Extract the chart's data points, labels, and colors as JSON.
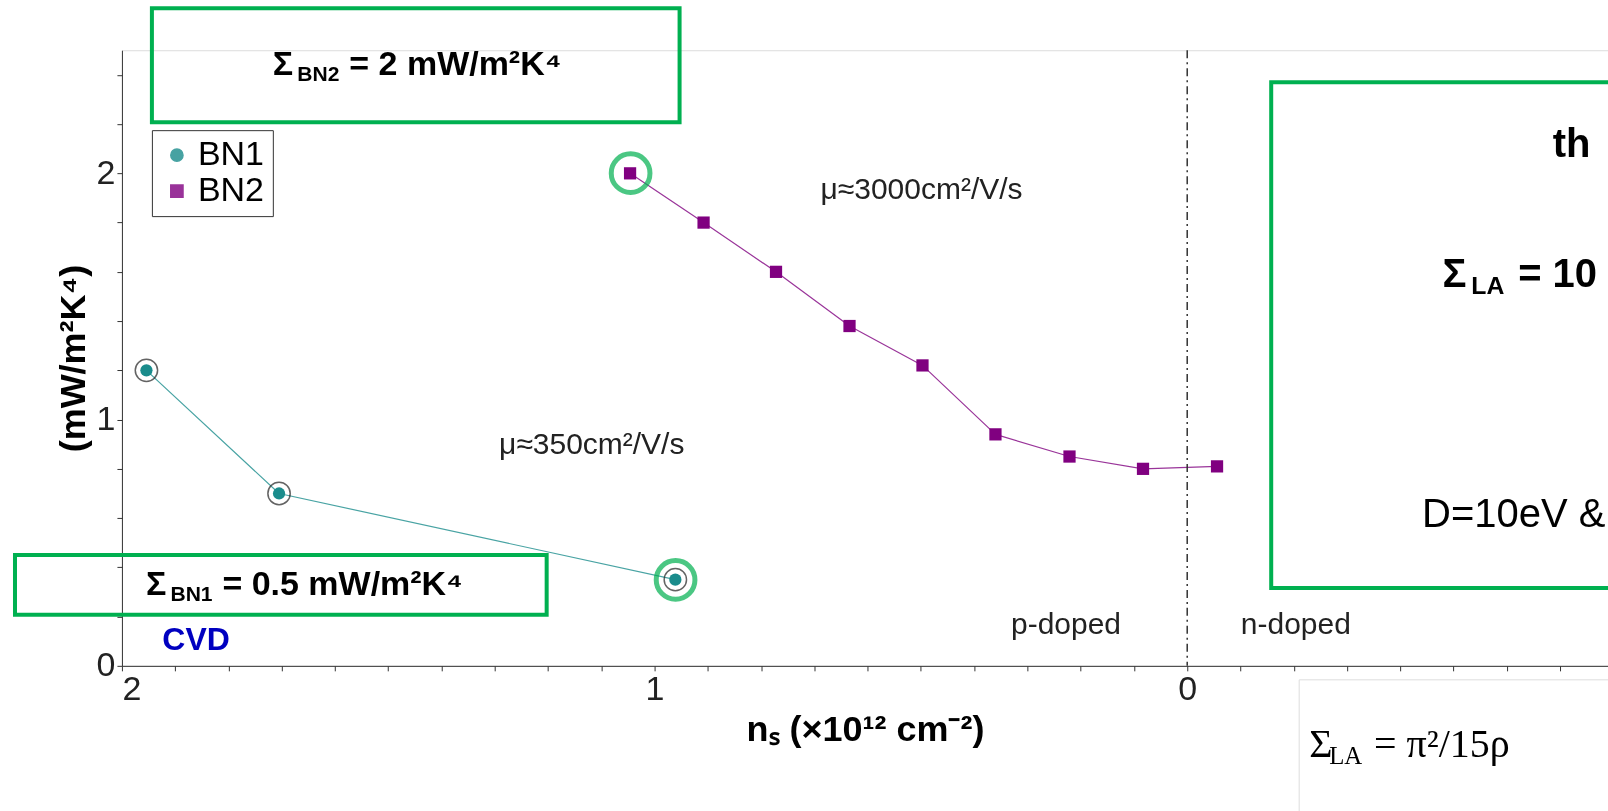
{
  "chart_data": {
    "type": "line",
    "xlabel": "nₛ (×10¹² cm⁻²)",
    "ylabel": "(mW/m²K⁴)",
    "xlim": [
      2,
      -0.79
    ],
    "ylim": [
      0,
      2.5
    ],
    "xticks": [
      2,
      {
        "value": 1.9,
        "label": null
      },
      {
        "value": 1.8,
        "label": null
      },
      {
        "value": 1.7,
        "label": null
      },
      {
        "value": 1.6,
        "label": null
      },
      {
        "value": 1.5,
        "label": null
      },
      {
        "value": 1.4,
        "label": null
      },
      {
        "value": 1.3,
        "label": null
      },
      {
        "value": 1.2,
        "label": null
      },
      {
        "value": 1.1,
        "label": null
      },
      1,
      {
        "value": 0.9,
        "label": null
      },
      {
        "value": 0.8,
        "label": null
      },
      {
        "value": 0.7,
        "label": null
      },
      {
        "value": 0.6,
        "label": null
      },
      {
        "value": 0.5,
        "label": null
      },
      {
        "value": 0.4,
        "label": null
      },
      {
        "value": 0.3,
        "label": null
      },
      {
        "value": 0.2,
        "label": null
      },
      {
        "value": 0.1,
        "label": null
      },
      0,
      {
        "value": -0.1,
        "label": null
      },
      {
        "value": -0.2,
        "label": null
      },
      {
        "value": -0.3,
        "label": null
      },
      {
        "value": -0.4,
        "label": null
      },
      {
        "value": -0.5,
        "label": null
      },
      {
        "value": -0.6,
        "label": null
      },
      {
        "value": -0.7,
        "label": null
      }
    ],
    "yticks": [
      0,
      {
        "value": 0.2,
        "label": null
      },
      {
        "value": 0.4,
        "label": null
      },
      {
        "value": 0.6,
        "label": null
      },
      {
        "value": 0.8,
        "label": null
      },
      1,
      {
        "value": 1.2,
        "label": null
      },
      {
        "value": 1.4,
        "label": null
      },
      {
        "value": 1.6,
        "label": null
      },
      {
        "value": 1.8,
        "label": null
      },
      2,
      {
        "value": 2.2,
        "label": null
      },
      {
        "value": 2.4,
        "label": null
      }
    ],
    "series": [
      {
        "name": "BN1",
        "color": "#1a8c8c",
        "marker": "circle",
        "x": [
          1.954,
          1.705,
          0.961
        ],
        "values": [
          1.2,
          0.7,
          0.35
        ]
      },
      {
        "name": "BN2",
        "color": "#800080",
        "marker": "square",
        "x": [
          1.046,
          0.908,
          0.772,
          0.634,
          0.497,
          0.36,
          0.221,
          0.083,
          -0.056
        ],
        "values": [
          2.0,
          1.8,
          1.6,
          1.38,
          1.22,
          0.94,
          0.85,
          0.8,
          0.81
        ]
      }
    ],
    "ref_lines": [
      {
        "axis": "x",
        "value": 0,
        "color": "#333333",
        "line_style": "dashed"
      }
    ],
    "annotations": [
      "μ≈3000cm²/V/s",
      "μ≈350cm²/V/s",
      "p-doped",
      "n-doped",
      "CVD",
      "Σ$_{BN2}$ = 2 mW/m²K⁴",
      "Σ$_{BN1}$ = 0.5 mW/m²K⁴",
      "th",
      "Σ$_{LA}$ = 10",
      "D=10eV &",
      "Σ$_{LA}$ = π²/15ρ"
    ],
    "legend": "top left",
    "grid": false
  }
}
